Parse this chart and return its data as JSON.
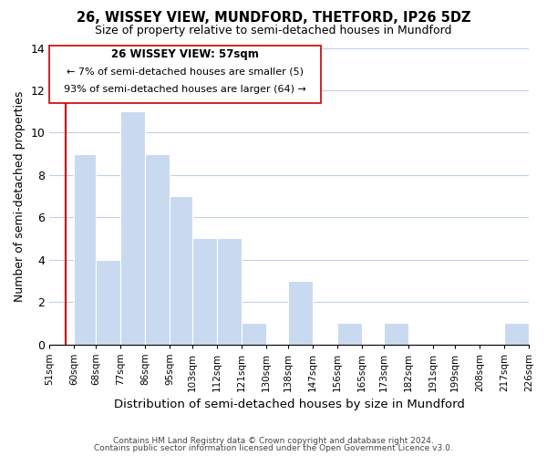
{
  "title": "26, WISSEY VIEW, MUNDFORD, THETFORD, IP26 5DZ",
  "subtitle": "Size of property relative to semi-detached houses in Mundford",
  "xlabel": "Distribution of semi-detached houses by size in Mundford",
  "ylabel": "Number of semi-detached properties",
  "footer_line1": "Contains HM Land Registry data © Crown copyright and database right 2024.",
  "footer_line2": "Contains public sector information licensed under the Open Government Licence v3.0.",
  "bins": [
    "51sqm",
    "60sqm",
    "68sqm",
    "77sqm",
    "86sqm",
    "95sqm",
    "103sqm",
    "112sqm",
    "121sqm",
    "130sqm",
    "138sqm",
    "147sqm",
    "156sqm",
    "165sqm",
    "173sqm",
    "182sqm",
    "191sqm",
    "199sqm",
    "208sqm",
    "217sqm",
    "226sqm"
  ],
  "values": [
    0,
    9,
    4,
    11,
    9,
    7,
    5,
    5,
    1,
    0,
    3,
    0,
    1,
    0,
    1,
    0,
    0,
    0,
    0,
    1
  ],
  "bar_color": "#c8d9f0",
  "marker_line_color": "#cc0000",
  "ylim": [
    0,
    14
  ],
  "yticks": [
    0,
    2,
    4,
    6,
    8,
    10,
    12,
    14
  ],
  "annotation_title": "26 WISSEY VIEW: 57sqm",
  "annotation_line1": "← 7% of semi-detached houses are smaller (5)",
  "annotation_line2": "93% of semi-detached houses are larger (64) →",
  "property_size_sqm": 57,
  "background_color": "#ffffff",
  "grid_color": "#c0d0e8",
  "bin_edges": [
    51,
    60,
    68,
    77,
    86,
    95,
    103,
    112,
    121,
    130,
    138,
    147,
    156,
    165,
    173,
    182,
    191,
    199,
    208,
    217,
    226
  ]
}
